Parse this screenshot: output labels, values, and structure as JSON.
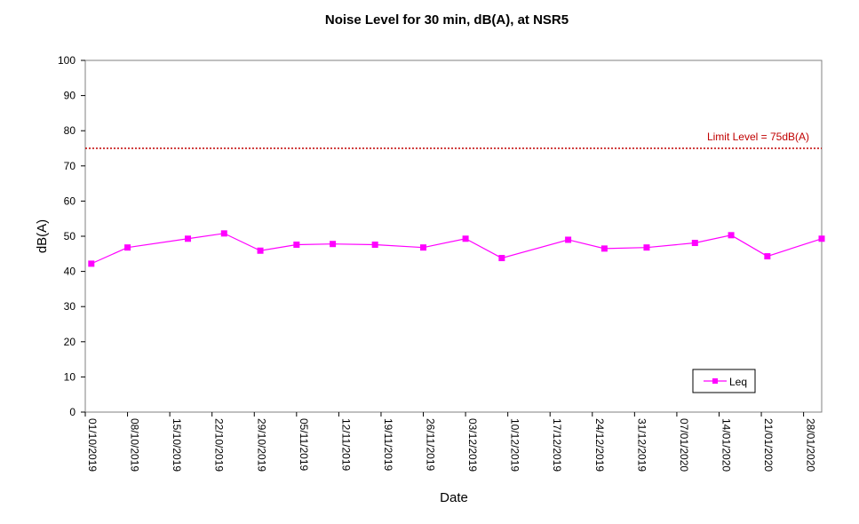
{
  "chart_data": {
    "type": "line",
    "title": "Noise Level for 30 min, dB(A), at NSR5",
    "xlabel": "Date",
    "ylabel": "dB(A)",
    "ylim": [
      0,
      100
    ],
    "yticks": [
      0,
      10,
      20,
      30,
      40,
      50,
      60,
      70,
      80,
      90,
      100
    ],
    "xlim": [
      "2019-10-01",
      "2020-01-31"
    ],
    "xticks": [
      "2019-10-01",
      "2019-10-08",
      "2019-10-15",
      "2019-10-22",
      "2019-10-29",
      "2019-11-05",
      "2019-11-12",
      "2019-11-19",
      "2019-11-26",
      "2019-12-03",
      "2019-12-10",
      "2019-12-17",
      "2019-12-24",
      "2019-12-31",
      "2020-01-07",
      "2020-01-14",
      "2020-01-21",
      "2020-01-28"
    ],
    "xtick_labels": [
      "01/10/2019",
      "08/10/2019",
      "15/10/2019",
      "22/10/2019",
      "29/10/2019",
      "05/11/2019",
      "12/11/2019",
      "19/11/2019",
      "26/11/2019",
      "03/12/2019",
      "10/12/2019",
      "17/12/2019",
      "24/12/2019",
      "31/12/2019",
      "07/01/2020",
      "14/01/2020",
      "21/01/2020",
      "28/01/2020"
    ],
    "grid": false,
    "legend_position": "bottom-right",
    "series": [
      {
        "name": "Leq",
        "color": "#ff00ff",
        "marker": "square",
        "x": [
          "2019-10-02",
          "2019-10-08",
          "2019-10-18",
          "2019-10-24",
          "2019-10-30",
          "2019-11-05",
          "2019-11-11",
          "2019-11-18",
          "2019-11-26",
          "2019-12-03",
          "2019-12-09",
          "2019-12-20",
          "2019-12-26",
          "2020-01-02",
          "2020-01-10",
          "2020-01-16",
          "2020-01-22",
          "2020-01-31"
        ],
        "y": [
          42.2,
          46.8,
          49.3,
          50.8,
          45.9,
          47.6,
          47.8,
          47.6,
          46.8,
          49.3,
          43.8,
          49.0,
          46.5,
          46.8,
          48.1,
          50.3,
          44.3,
          49.3
        ]
      }
    ],
    "reference_lines": [
      {
        "y": 75,
        "label": "Limit Level = 75dB(A)",
        "color": "#c00000",
        "style": "dotted"
      }
    ]
  }
}
